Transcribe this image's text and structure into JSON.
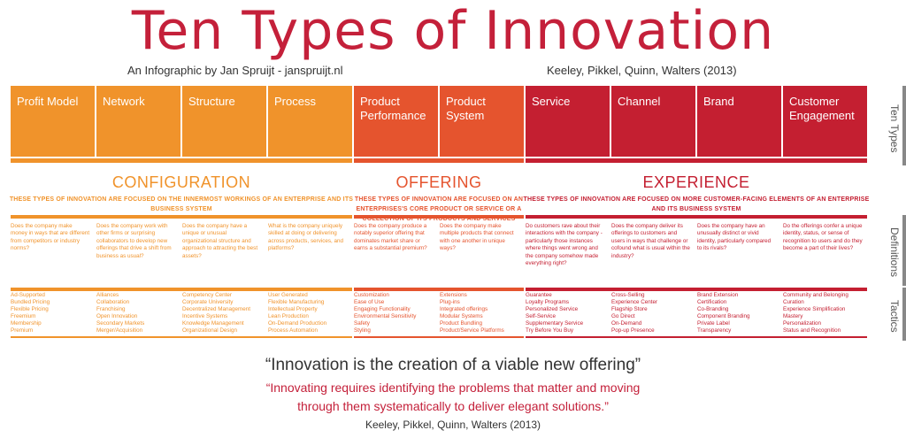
{
  "title": "Ten Types of Innovation",
  "byline": "An Infographic by Jan Spruijt - janspruijt.nl",
  "authors": "Keeley, Pikkel, Quinn, Walters (2013)",
  "side_labels": [
    "Ten Types",
    "Definitions",
    "Tactics"
  ],
  "colors": {
    "configuration": "#f0932b",
    "offering": "#e5542e",
    "experience": "#c41f31"
  },
  "types": [
    {
      "label": "Profit Model",
      "group": "configuration"
    },
    {
      "label": "Network",
      "group": "configuration"
    },
    {
      "label": "Structure",
      "group": "configuration"
    },
    {
      "label": "Process",
      "group": "configuration"
    },
    {
      "label": "Product Performance",
      "group": "offering"
    },
    {
      "label": "Product System",
      "group": "offering"
    },
    {
      "label": "Service",
      "group": "experience"
    },
    {
      "label": "Channel",
      "group": "experience"
    },
    {
      "label": "Brand",
      "group": "experience"
    },
    {
      "label": "Customer Engagement",
      "group": "experience"
    }
  ],
  "groups": {
    "configuration": {
      "heading": "CONFIGURATION",
      "desc": "These types of innovation are focused on the innermost workings of an enterprise and its business system"
    },
    "offering": {
      "heading": "OFFERING",
      "desc": "These types of innovation are focused on an enterprises's core product or service or a collection of its products and services"
    },
    "experience": {
      "heading": "EXPERIENCE",
      "desc": "These types of innovation are focused on more customer-facing elements of an enterprise and its business system"
    }
  },
  "definitions": [
    "Does the company make money in ways that are different from competitors or industry norms?",
    "Does the company work with other firms or surprising collaborators to develop new offerings that drive a shift from business as usual?",
    "Does the company have a unique or unusual organizational structure and approach to attracting the best assets?",
    "What is the company uniquely skilled at doing or delivering across products, services, and platforms?",
    "Does the company produce a notably superior offering that dominates market share or earns a substantial premium?",
    "Does the company make multiple products that connect with one another in unique ways?",
    "Do customers rave about their interactions with the company - particularly those instances where things went wrong and the company somehow made everything right?",
    "Does the company deliver its offerings to customers and users in ways that challenge or cofound what is usual within the industry?",
    "Does the company have an unusually distinct or vivid identity, particularly compared to its rivals?",
    "Do the offerings confer a unique identity, status, or sense of recognition to users and do they become a part of their lives?"
  ],
  "tactics": [
    [
      "Ad-Supported",
      "Bundled Pricing",
      "Flexible Pricing",
      "Freemium",
      "Membership",
      "Premium"
    ],
    [
      "Alliances",
      "Collaboration",
      "Franchising",
      "Open Innovation",
      "Secondary Markets",
      "Merger/Acquisition"
    ],
    [
      "Competency Center",
      "Corporate University",
      "Decentralized Management",
      "Incentive Systems",
      "Knowledge Management",
      "Organizational Design"
    ],
    [
      "User Generated",
      "Flexible Manufacturing",
      "Intellectual Property",
      "Lean Production",
      "On-Demand Production",
      "Process Automation"
    ],
    [
      "Customization",
      "Ease of Use",
      "Engaging Functionality",
      "Environmental Sensitivity",
      "Safety",
      "Styling"
    ],
    [
      "Extensions",
      "Plug-ins",
      "Integrated offerings",
      "Modular Systems",
      "Product Bundling",
      "Product/Service Platforms"
    ],
    [
      "Guarantee",
      "Loyalty Programs",
      "Personalized Service",
      "Self-Service",
      "Supplementary Service",
      "Try Before You Buy"
    ],
    [
      "Cross-Selling",
      "Experience Center",
      "Flagship Store",
      "Go Direct",
      "On-Demand",
      "Pop-up Presence"
    ],
    [
      "Brand Extension",
      "Certification",
      "Co-Branding",
      "Component Branding",
      "Private Label",
      "Transparency"
    ],
    [
      "Community and Belonging",
      "Curation",
      "Experience Simplification",
      "Mastery",
      "Personalization",
      "Status and Recognition"
    ]
  ],
  "quote": {
    "main": "“Innovation is the creation of a viable new offering”",
    "sub_line1": "“Innovating requires identifying the problems that matter and moving",
    "sub_line2": "through them systematically to deliver elegant solutions.”",
    "cite": "Keeley, Pikkel, Quinn, Walters (2013)"
  }
}
